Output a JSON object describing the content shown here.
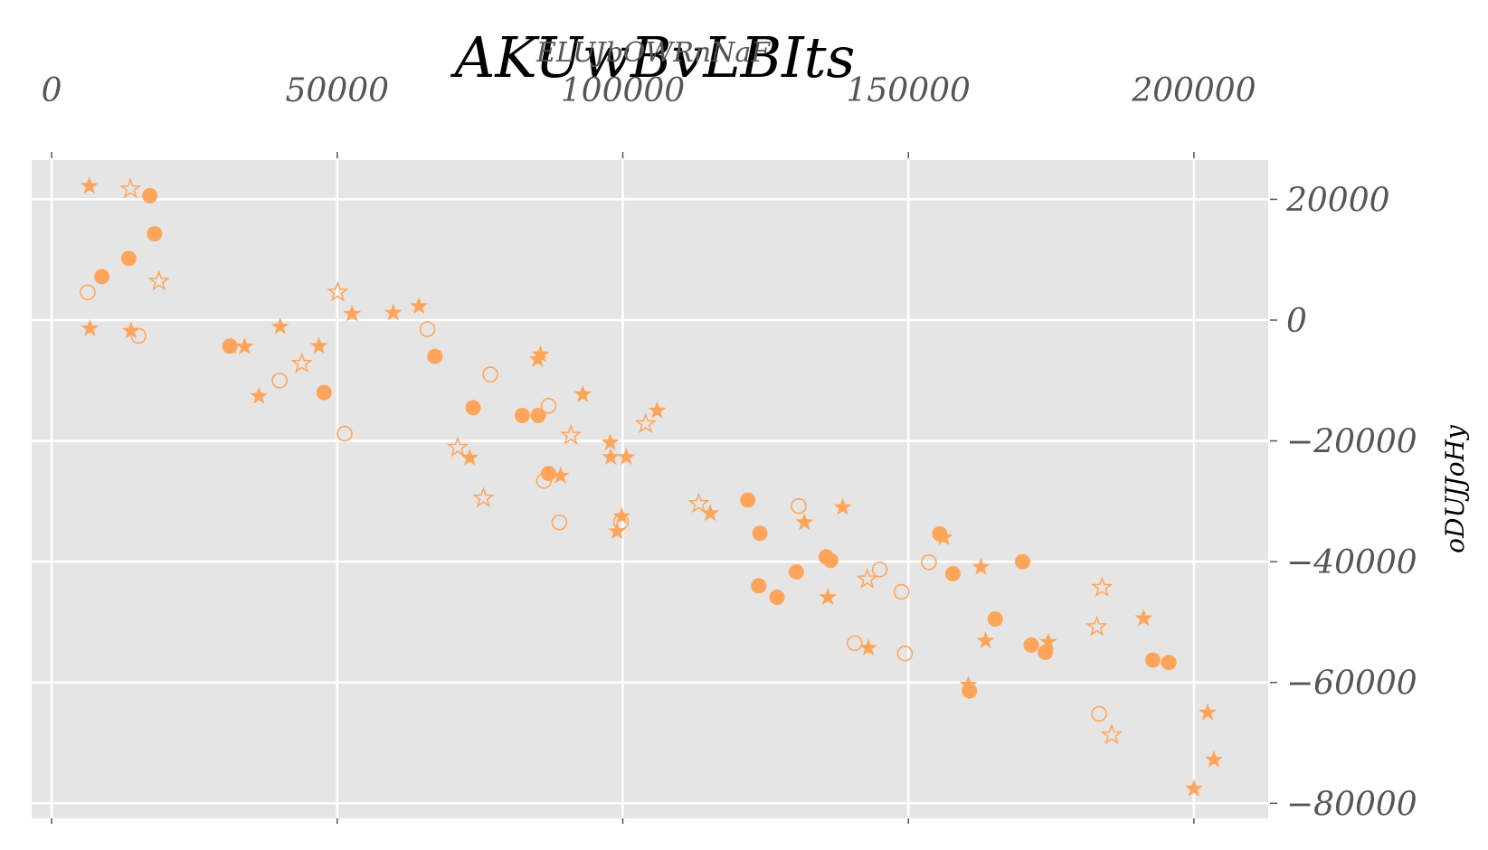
{
  "chart_data": {
    "type": "scatter",
    "title": "AKUwBvLBIts",
    "xlabel": "ELUJbOWRnNaF",
    "ylabel": "oDUJJoHy",
    "xlim": [
      -3500,
      213000
    ],
    "ylim": [
      -82500,
      26500
    ],
    "xticks": [
      0,
      50000,
      100000,
      150000,
      200000
    ],
    "xtick_labels": [
      "0",
      "50000",
      "100000",
      "150000",
      "200000"
    ],
    "yticks": [
      20000,
      0,
      -20000,
      -40000,
      -60000,
      -80000
    ],
    "ytick_labels": [
      "20000",
      "0",
      "−20000",
      "−40000",
      "−60000",
      "−80000"
    ],
    "x_axis_position": "top",
    "y_axis_position": "right",
    "grid": true,
    "colors": {
      "marker": "#ffa55a",
      "background": "#e5e5e5",
      "grid": "#ffffff"
    },
    "series": [
      {
        "marker": "filled-circle",
        "points": [
          [
            8800,
            7200
          ],
          [
            13500,
            10200
          ],
          [
            17200,
            20600
          ],
          [
            18000,
            14300
          ],
          [
            31200,
            -4300
          ],
          [
            47700,
            -12000
          ],
          [
            67100,
            -6000
          ],
          [
            73800,
            -14500
          ],
          [
            82400,
            -15800
          ],
          [
            85200,
            -15800
          ],
          [
            87000,
            -25400
          ],
          [
            121900,
            -29800
          ],
          [
            124000,
            -35300
          ],
          [
            123800,
            -44000
          ],
          [
            127000,
            -45900
          ],
          [
            130400,
            -41700
          ],
          [
            135600,
            -39200
          ],
          [
            136400,
            -39800
          ],
          [
            155500,
            -35400
          ],
          [
            157800,
            -42000
          ],
          [
            160700,
            -61400
          ],
          [
            165200,
            -49500
          ],
          [
            170000,
            -40000
          ],
          [
            171500,
            -53800
          ],
          [
            174000,
            -55000
          ],
          [
            192800,
            -56300
          ],
          [
            195600,
            -56700
          ]
        ]
      },
      {
        "marker": "open-circle",
        "points": [
          [
            6300,
            4600
          ],
          [
            15200,
            -2600
          ],
          [
            39900,
            -10000
          ],
          [
            51300,
            -18800
          ],
          [
            65800,
            -1500
          ],
          [
            76800,
            -9000
          ],
          [
            86200,
            -26600
          ],
          [
            87000,
            -14200
          ],
          [
            88900,
            -33500
          ],
          [
            99700,
            -33400
          ],
          [
            130800,
            -30800
          ],
          [
            140600,
            -53500
          ],
          [
            145000,
            -41300
          ],
          [
            148800,
            -45000
          ],
          [
            149400,
            -55200
          ],
          [
            153600,
            -40100
          ],
          [
            183400,
            -65200
          ]
        ]
      },
      {
        "marker": "filled-star",
        "points": [
          [
            6600,
            22200
          ],
          [
            6700,
            -1400
          ],
          [
            13900,
            -1800
          ],
          [
            31400,
            -4300
          ],
          [
            33800,
            -4400
          ],
          [
            36300,
            -12600
          ],
          [
            40000,
            -1100
          ],
          [
            46800,
            -4300
          ],
          [
            52600,
            1000
          ],
          [
            59800,
            1200
          ],
          [
            64300,
            2300
          ],
          [
            73200,
            -22800
          ],
          [
            85100,
            -6500
          ],
          [
            85600,
            -5700
          ],
          [
            89100,
            -25800
          ],
          [
            93000,
            -12300
          ],
          [
            97800,
            -20300
          ],
          [
            97900,
            -22700
          ],
          [
            99000,
            -35000
          ],
          [
            99800,
            -32500
          ],
          [
            100600,
            -22700
          ],
          [
            106000,
            -15000
          ],
          [
            115300,
            -32000
          ],
          [
            131800,
            -33500
          ],
          [
            135900,
            -45900
          ],
          [
            138500,
            -31000
          ],
          [
            143000,
            -54300
          ],
          [
            156200,
            -36000
          ],
          [
            160500,
            -60400
          ],
          [
            162700,
            -40900
          ],
          [
            163500,
            -53100
          ],
          [
            174500,
            -53300
          ],
          [
            191200,
            -49400
          ],
          [
            200000,
            -77600
          ],
          [
            202400,
            -65000
          ],
          [
            203500,
            -72800
          ]
        ]
      },
      {
        "marker": "open-star",
        "points": [
          [
            13800,
            21700
          ],
          [
            18800,
            6400
          ],
          [
            43800,
            -7200
          ],
          [
            50100,
            4600
          ],
          [
            71100,
            -21100
          ],
          [
            75600,
            -29500
          ],
          [
            90900,
            -19100
          ],
          [
            104000,
            -17200
          ],
          [
            113300,
            -30400
          ],
          [
            142800,
            -42900
          ],
          [
            183000,
            -50800
          ],
          [
            183900,
            -44300
          ],
          [
            185600,
            -68700
          ]
        ]
      }
    ]
  }
}
